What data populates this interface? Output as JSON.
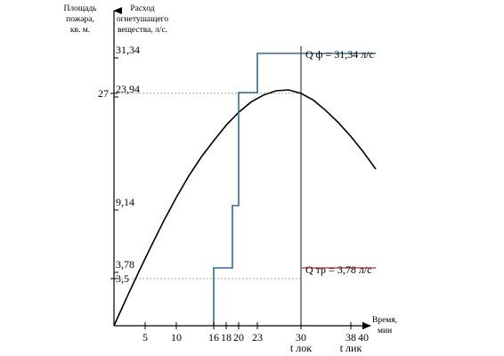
{
  "chart_data": {
    "type": "line",
    "axis_headers": {
      "area": [
        "Площадь",
        "пожара,",
        "кв. м."
      ],
      "flow": [
        "Расход",
        "огнетушащего",
        "вещества, л/с."
      ],
      "time": [
        "Время,",
        "мин"
      ]
    },
    "xlim": [
      0,
      42
    ],
    "x_ticks": [
      5,
      10,
      16,
      18,
      20,
      23,
      30,
      38,
      40
    ],
    "x_time_labels": [
      {
        "x": 30,
        "label": "t лок"
      },
      {
        "x": 38,
        "label": "t лик"
      }
    ],
    "area_axis": {
      "ticks": [
        {
          "value": 27,
          "label": "27"
        },
        {
          "value": 3.5,
          "label": "3,5"
        }
      ]
    },
    "flow_axis": {
      "ticks": [
        {
          "value": 31.34,
          "label": "31,34"
        },
        {
          "value": 23.94,
          "label": "23,94"
        },
        {
          "value": 9.14,
          "label": "9,14"
        },
        {
          "value": 3.78,
          "label": "3,78"
        }
      ]
    },
    "series": [
      {
        "color": "#000000",
        "x": [
          0,
          2,
          4,
          6,
          8,
          10,
          12,
          14,
          16,
          18,
          20,
          22,
          24,
          26,
          28,
          30,
          32,
          34,
          36,
          38,
          40,
          42
        ],
        "y": [
          0,
          3.2,
          6.3,
          9.3,
          12.2,
          14.9,
          17.4,
          19.6,
          21.5,
          23.3,
          24.8,
          26.0,
          26.8,
          27.3,
          27.4,
          27.0,
          26.2,
          25.0,
          23.6,
          22.0,
          20.2,
          18.2
        ]
      },
      {
        "color": "#2e6e9e",
        "x": [
          16,
          16,
          19,
          19,
          20,
          20,
          23,
          23,
          42
        ],
        "y": [
          0,
          3.78,
          3.78,
          9.14,
          9.14,
          23.94,
          23.94,
          31.34,
          31.34
        ]
      },
      {
        "color": "#c0504d",
        "x": [
          30,
          42
        ],
        "y": [
          3.78,
          3.78
        ]
      }
    ],
    "reference_lines": {
      "vertical_x": 30,
      "dashed_y": [
        27,
        3.5
      ]
    },
    "annotations": [
      {
        "text": "Q ф = 31,34 л/с"
      },
      {
        "text": "Q тр = 3,78 л/с"
      }
    ],
    "grid": false
  }
}
